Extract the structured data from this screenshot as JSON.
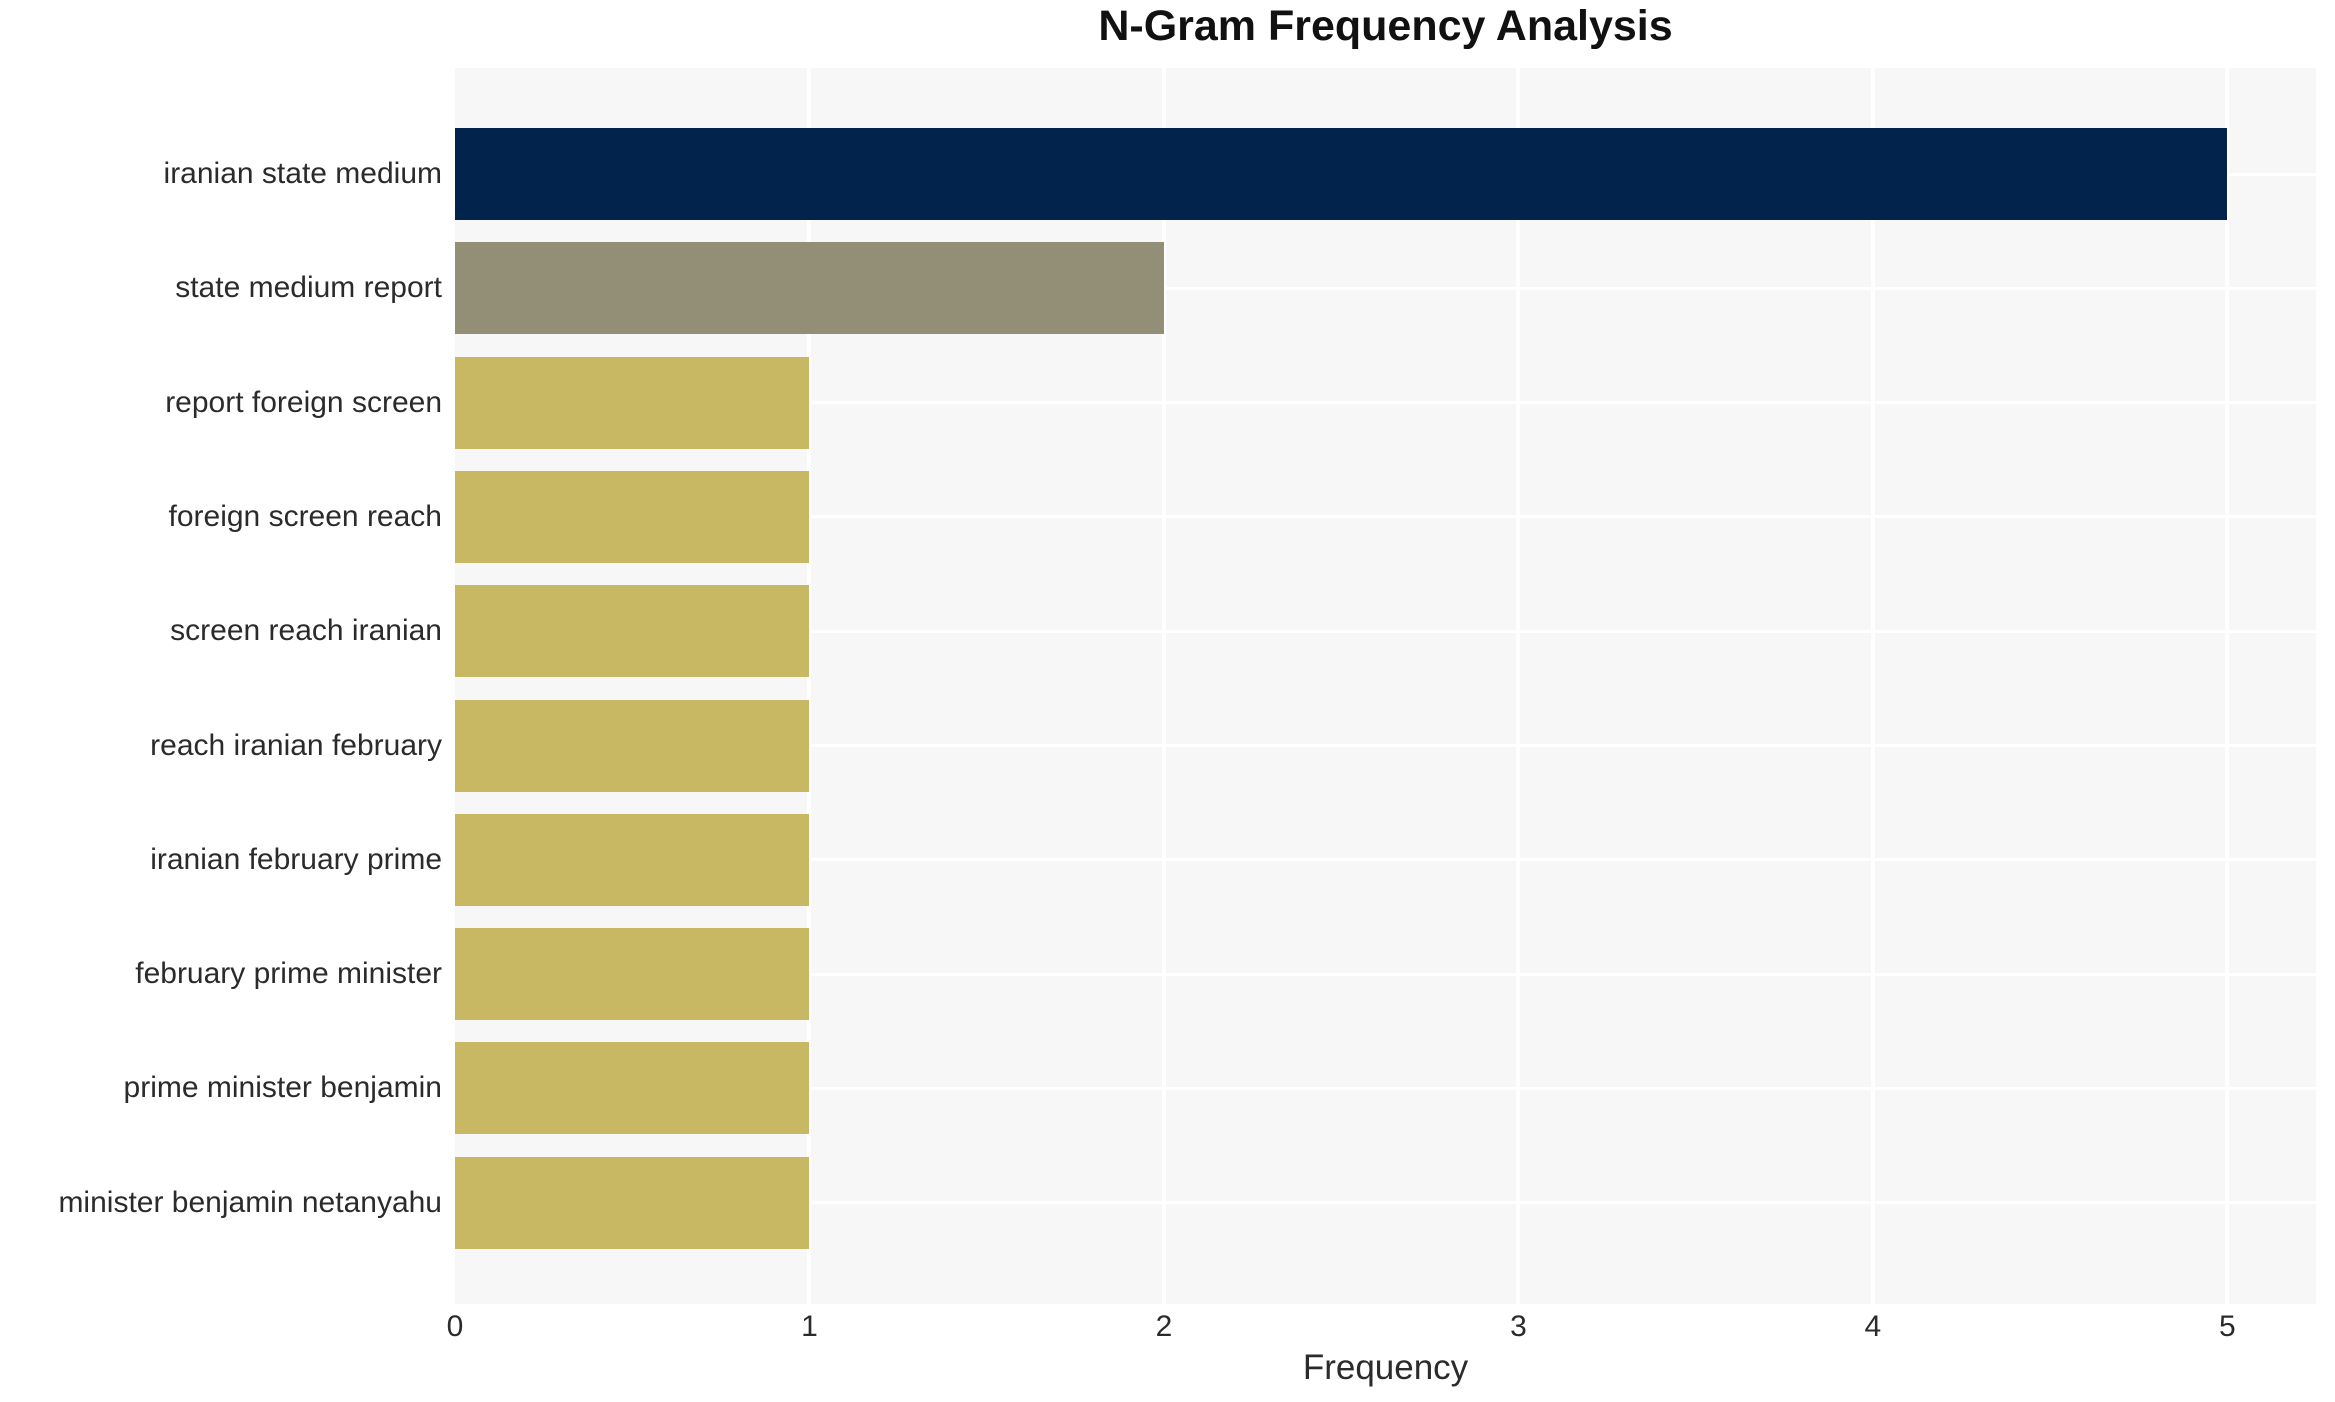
{
  "chart_data": {
    "type": "bar",
    "orientation": "horizontal",
    "title": "N-Gram Frequency Analysis",
    "xlabel": "Frequency",
    "ylabel": "",
    "categories": [
      "iranian state medium",
      "state medium report",
      "report foreign screen",
      "foreign screen reach",
      "screen reach iranian",
      "reach iranian february",
      "iranian february prime",
      "february prime minister",
      "prime minister benjamin",
      "minister benjamin netanyahu"
    ],
    "values": [
      5,
      2,
      1,
      1,
      1,
      1,
      1,
      1,
      1,
      1
    ],
    "bar_colors": [
      "#02234c",
      "#938f76",
      "#c8b864",
      "#c8b864",
      "#c8b864",
      "#c8b864",
      "#c8b864",
      "#c8b864",
      "#c8b864",
      "#c8b864"
    ],
    "xlim": [
      0,
      5.25
    ],
    "xticks": [
      0,
      1,
      2,
      3,
      4,
      5
    ],
    "grid": true,
    "legend": false,
    "plot_background": "#f7f7f7",
    "grid_color": "#ffffff",
    "text_color": "#2b2b2b"
  }
}
